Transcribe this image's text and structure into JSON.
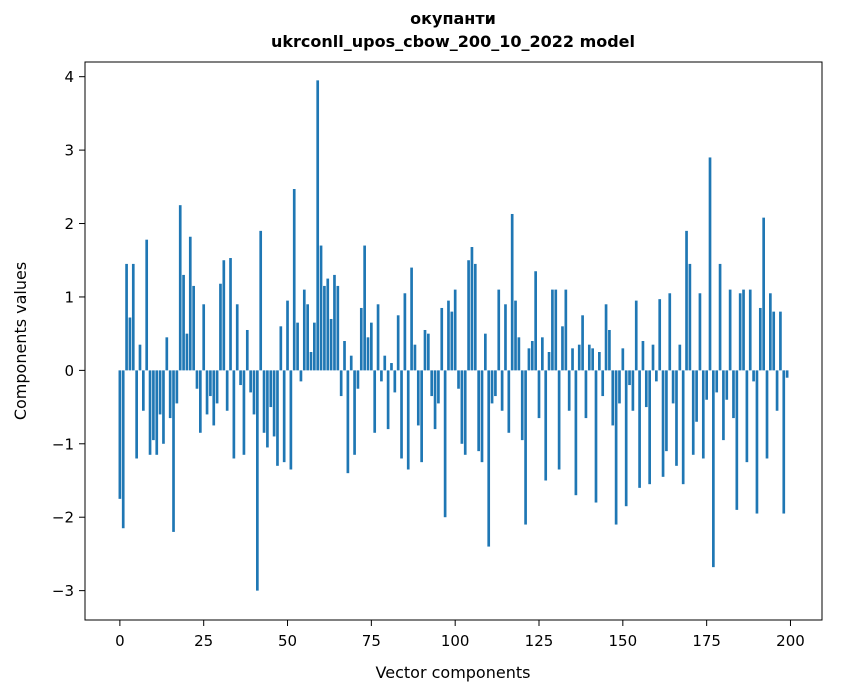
{
  "chart_data": {
    "type": "bar",
    "title": "окупанти",
    "subtitle": "ukrconll_upos_cbow_200_10_2022 model",
    "xlabel": "Vector components",
    "ylabel": "Components values",
    "bar_color": "#1f77b4",
    "xlim": [
      -10.4,
      209.4
    ],
    "ylim": [
      -3.4,
      4.2
    ],
    "xticks": [
      0,
      25,
      50,
      75,
      100,
      125,
      150,
      175,
      200
    ],
    "yticks": [
      -3,
      -2,
      -1,
      0,
      1,
      2,
      3,
      4
    ],
    "grid": false,
    "legend": "none",
    "values": [
      -1.75,
      -2.15,
      1.45,
      0.72,
      1.45,
      -1.2,
      0.35,
      -0.55,
      1.78,
      -1.15,
      -0.95,
      -1.15,
      -0.6,
      -1.0,
      0.45,
      -0.65,
      -2.2,
      -0.45,
      2.25,
      1.3,
      0.5,
      1.82,
      1.15,
      -0.25,
      -0.85,
      0.9,
      -0.6,
      -0.35,
      -0.75,
      -0.45,
      1.18,
      1.5,
      -0.55,
      1.53,
      -1.2,
      0.9,
      -0.2,
      -1.15,
      0.55,
      -0.3,
      -0.6,
      -3.0,
      1.9,
      -0.85,
      -1.05,
      -0.5,
      -0.9,
      -1.3,
      0.6,
      -1.25,
      0.95,
      -1.35,
      2.47,
      0.65,
      -0.15,
      1.1,
      0.9,
      0.25,
      0.65,
      3.95,
      1.7,
      1.15,
      1.25,
      0.7,
      1.3,
      1.15,
      -0.35,
      0.4,
      -1.4,
      0.2,
      -1.15,
      -0.25,
      0.85,
      1.7,
      0.45,
      0.65,
      -0.85,
      0.9,
      -0.15,
      0.2,
      -0.8,
      0.1,
      -0.3,
      0.75,
      -1.2,
      1.05,
      -1.35,
      1.4,
      0.35,
      -0.75,
      -1.25,
      0.55,
      0.5,
      -0.35,
      -0.8,
      -0.45,
      0.85,
      -2.0,
      0.95,
      0.8,
      1.1,
      -0.25,
      -1.0,
      -1.15,
      1.5,
      1.68,
      1.45,
      -1.1,
      -1.25,
      0.5,
      -2.4,
      -0.45,
      -0.35,
      1.1,
      -0.55,
      0.9,
      -0.85,
      2.13,
      0.95,
      0.45,
      -0.95,
      -2.1,
      0.3,
      0.4,
      1.35,
      -0.65,
      0.45,
      -1.5,
      0.25,
      1.1,
      1.1,
      -1.35,
      0.6,
      1.1,
      -0.55,
      0.3,
      -1.7,
      0.35,
      0.75,
      -0.65,
      0.35,
      0.3,
      -1.8,
      0.25,
      -0.35,
      0.9,
      0.55,
      -0.75,
      -2.1,
      -0.45,
      0.3,
      -1.85,
      -0.2,
      -0.55,
      0.95,
      -1.6,
      0.4,
      -0.5,
      -1.55,
      0.35,
      -0.15,
      0.97,
      -1.45,
      -1.1,
      1.05,
      -0.45,
      -1.3,
      0.35,
      -1.55,
      1.9,
      1.45,
      -1.15,
      -0.7,
      1.05,
      -1.2,
      -0.4,
      2.9,
      -2.68,
      -0.3,
      1.45,
      -0.95,
      -0.4,
      1.1,
      -0.65,
      -1.9,
      1.05,
      1.1,
      -1.25,
      1.1,
      -0.15,
      -1.95,
      0.85,
      2.08,
      -1.2,
      1.05,
      0.8,
      -0.55,
      0.8,
      -1.95,
      -0.1
    ]
  }
}
